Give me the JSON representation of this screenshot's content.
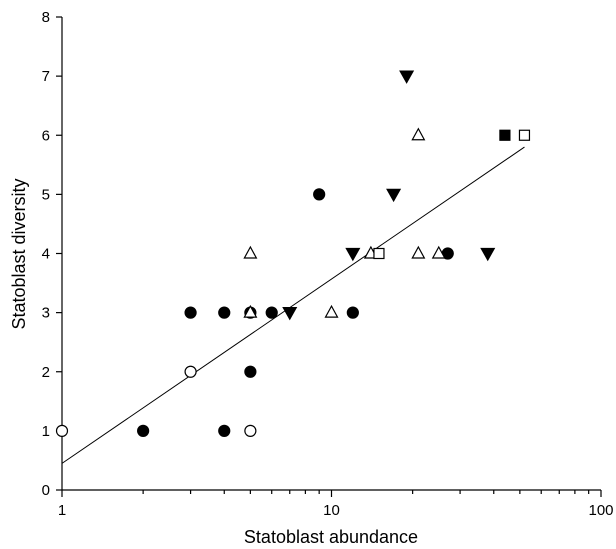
{
  "chart_data": {
    "type": "scatter",
    "title": "",
    "xlabel": "Statoblast abundance",
    "ylabel": "Statoblast diversity",
    "xscale": "log",
    "xlim": [
      1,
      100
    ],
    "ylim": [
      0,
      8
    ],
    "xticks": [
      1,
      10,
      100
    ],
    "xtick_labels": [
      "1",
      "10",
      "100"
    ],
    "yticks": [
      0,
      1,
      2,
      3,
      4,
      5,
      6,
      7,
      8
    ],
    "ytick_labels": [
      "0",
      "1",
      "2",
      "3",
      "4",
      "5",
      "6",
      "7",
      "8"
    ],
    "grid": false,
    "legend": "none",
    "series": [
      {
        "marker": "filled-circle",
        "color": "#000000",
        "points": [
          [
            2,
            1
          ],
          [
            3,
            3
          ],
          [
            4,
            3
          ],
          [
            4,
            1
          ],
          [
            5,
            3
          ],
          [
            5,
            2
          ],
          [
            6,
            3
          ],
          [
            9,
            5
          ],
          [
            12,
            3
          ],
          [
            27,
            4
          ]
        ]
      },
      {
        "marker": "open-circle",
        "color": "#000000",
        "points": [
          [
            1,
            1
          ],
          [
            3,
            2
          ],
          [
            5,
            1
          ]
        ]
      },
      {
        "marker": "open-triangle-up",
        "color": "#000000",
        "points": [
          [
            5,
            4
          ],
          [
            5,
            3
          ],
          [
            10,
            3
          ],
          [
            14,
            4
          ],
          [
            21,
            6
          ],
          [
            21,
            4
          ],
          [
            25,
            4
          ]
        ]
      },
      {
        "marker": "filled-triangle-down",
        "color": "#000000",
        "points": [
          [
            7,
            3
          ],
          [
            12,
            4
          ],
          [
            17,
            5
          ],
          [
            19,
            7
          ],
          [
            38,
            4
          ]
        ]
      },
      {
        "marker": "filled-square",
        "color": "#000000",
        "points": [
          [
            44,
            6
          ]
        ]
      },
      {
        "marker": "open-square",
        "color": "#000000",
        "points": [
          [
            15,
            4
          ],
          [
            52,
            6
          ]
        ]
      }
    ],
    "trendline": {
      "type": "linear-on-log-x",
      "from": [
        1,
        0.45
      ],
      "to": [
        52,
        5.8
      ]
    }
  }
}
